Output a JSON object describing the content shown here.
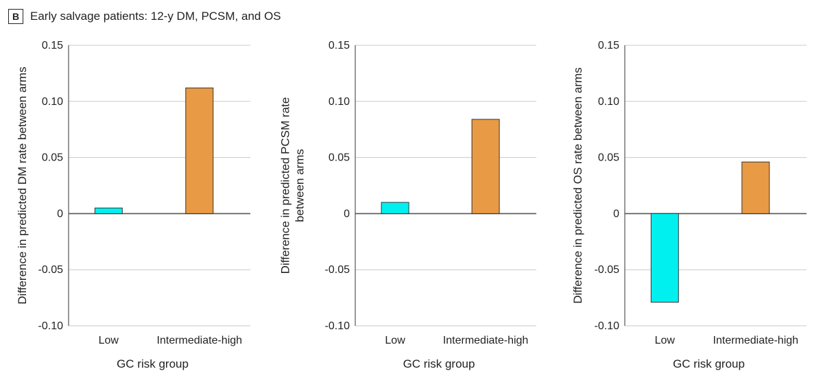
{
  "header": {
    "panel_letter": "B",
    "title": "Early salvage patients: 12-y DM, PCSM, and OS"
  },
  "colors": {
    "low": "#00f0f0",
    "intermediate_high": "#e89a45",
    "grid": "#c8c8c8",
    "axis": "#555555"
  },
  "chart_data": [
    {
      "type": "bar",
      "categories": [
        "Low",
        "Intermediate-high"
      ],
      "values": [
        0.005,
        0.112
      ],
      "xlabel": "GC risk group",
      "ylabel_lines": [
        "Difference in predicted DM rate between arms"
      ],
      "ylim": [
        -0.1,
        0.15
      ],
      "yticks": [
        0.15,
        0.1,
        0.05,
        0,
        -0.05,
        -0.1
      ],
      "ytick_labels": [
        "0.15",
        "0.10",
        "0.05",
        "0",
        "-0.05",
        "-0.10"
      ],
      "grid": true
    },
    {
      "type": "bar",
      "categories": [
        "Low",
        "Intermediate-high"
      ],
      "values": [
        0.01,
        0.084
      ],
      "xlabel": "GC risk group",
      "ylabel_lines": [
        "Difference in predicted PCSM rate",
        "between arms"
      ],
      "ylim": [
        -0.1,
        0.15
      ],
      "yticks": [
        0.15,
        0.1,
        0.05,
        0,
        -0.05,
        -0.1
      ],
      "ytick_labels": [
        "0.15",
        "0.10",
        "0.05",
        "0",
        "-0.05",
        "-0.10"
      ],
      "grid": true
    },
    {
      "type": "bar",
      "categories": [
        "Low",
        "Intermediate-high"
      ],
      "values": [
        -0.079,
        0.046
      ],
      "xlabel": "GC risk group",
      "ylabel_lines": [
        "Difference in predicted OS rate between arms"
      ],
      "ylim": [
        -0.1,
        0.15
      ],
      "yticks": [
        0.15,
        0.1,
        0.05,
        0,
        -0.05,
        -0.1
      ],
      "ytick_labels": [
        "0.15",
        "0.10",
        "0.05",
        "0",
        "-0.05",
        "-0.10"
      ],
      "grid": true
    }
  ]
}
